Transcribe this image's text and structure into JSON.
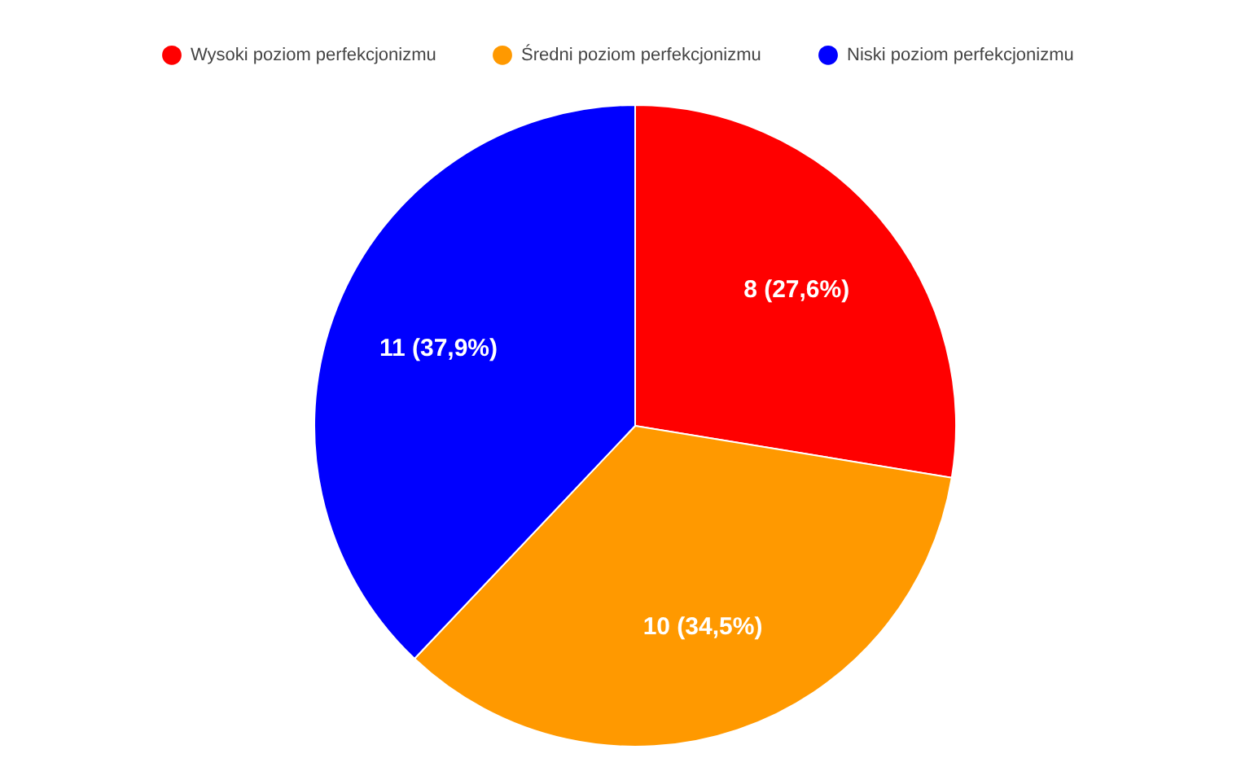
{
  "chart_data": {
    "type": "pie",
    "categories": [
      "Wysoki poziom perfekcjonizmu",
      "Średni poziom perfekcjonizmu",
      "Niski poziom perfekcjonizmu"
    ],
    "values": [
      8,
      10,
      11
    ],
    "colors": [
      "#ff0000",
      "#ff9900",
      "#0000ff"
    ],
    "value_labels": [
      "8 (27,6%)",
      "10 (34,5%)",
      "11 (37,9%)"
    ],
    "legend": "top"
  }
}
